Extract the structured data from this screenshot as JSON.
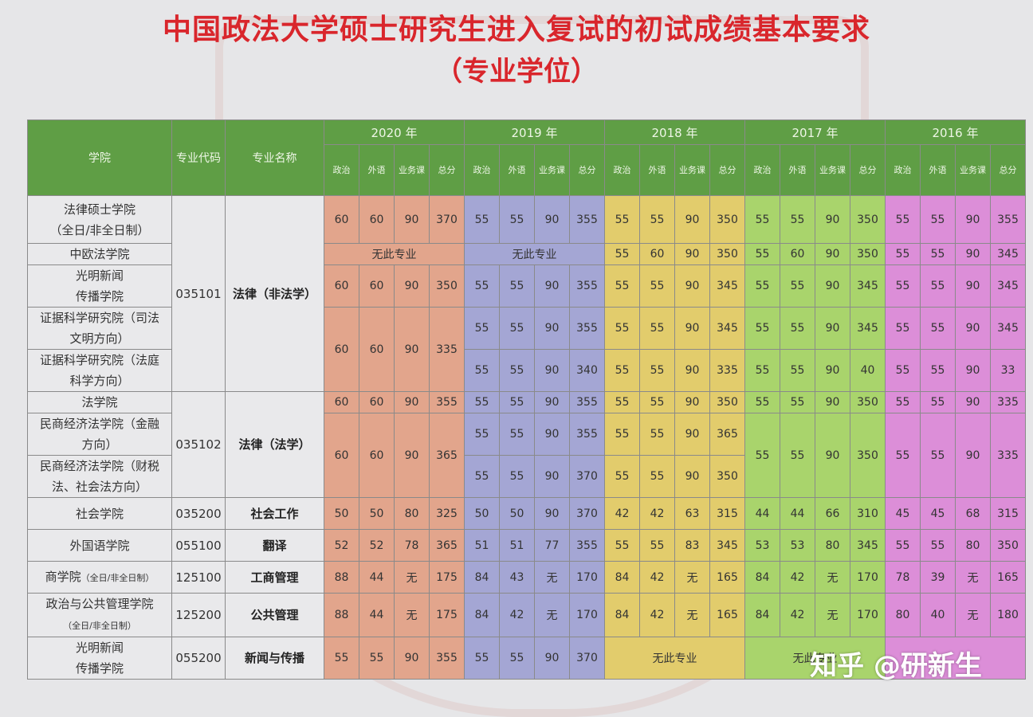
{
  "title": "中国政法大学硕士研究生进入复试的初试成绩基本要求",
  "subtitle": "（专业学位）",
  "header": {
    "college": "学院",
    "code": "专业代码",
    "major": "专业名称",
    "years": [
      "2020 年",
      "2019 年",
      "2018 年",
      "2017 年",
      "2016 年"
    ],
    "subjects": [
      "政治",
      "外语",
      "业务课",
      "总分"
    ]
  },
  "rows": {
    "r1": {
      "college_line1": "法律硕士学院",
      "college_line2": "（全日/非全日制）",
      "v2020": [
        "60",
        "60",
        "90",
        "370"
      ],
      "v2019": [
        "55",
        "55",
        "90",
        "355"
      ],
      "v2018": [
        "55",
        "55",
        "90",
        "350"
      ],
      "v2017": [
        "55",
        "55",
        "90",
        "350"
      ],
      "v2016": [
        "55",
        "55",
        "90",
        "355"
      ]
    },
    "r2": {
      "college": "中欧法学院",
      "na2020": "无此专业",
      "na2019": "无此专业",
      "v2018": [
        "55",
        "60",
        "90",
        "350"
      ],
      "v2017": [
        "55",
        "60",
        "90",
        "350"
      ],
      "v2016": [
        "55",
        "55",
        "90",
        "345"
      ]
    },
    "r3": {
      "college_line1": "光明新闻",
      "college_line2": "传播学院",
      "v2020": [
        "60",
        "60",
        "90",
        "350"
      ],
      "v2019": [
        "55",
        "55",
        "90",
        "355"
      ],
      "v2018": [
        "55",
        "55",
        "90",
        "345"
      ],
      "v2017": [
        "55",
        "55",
        "90",
        "345"
      ],
      "v2016": [
        "55",
        "55",
        "90",
        "345"
      ]
    },
    "r4": {
      "college_line1": "证据科学研究院（司法",
      "college_line2": "文明方向）",
      "v2020": [
        "60",
        "60",
        "90",
        "335"
      ],
      "v2019": [
        "55",
        "55",
        "90",
        "355"
      ],
      "v2018": [
        "55",
        "55",
        "90",
        "345"
      ],
      "v2017": [
        "55",
        "55",
        "90",
        "345"
      ],
      "v2016": [
        "55",
        "55",
        "90",
        "345"
      ]
    },
    "r5": {
      "college_line1": "证据科学研究院（法庭",
      "college_line2": "科学方向）",
      "v2019": [
        "55",
        "55",
        "90",
        "340"
      ],
      "v2018": [
        "55",
        "55",
        "90",
        "335"
      ],
      "v2017": [
        "55",
        "55",
        "90",
        "40"
      ],
      "v2016": [
        "55",
        "55",
        "90",
        "33"
      ]
    },
    "r6": {
      "college": "法学院",
      "v2020": [
        "60",
        "60",
        "90",
        "355"
      ],
      "v2019": [
        "55",
        "55",
        "90",
        "355"
      ],
      "v2018": [
        "55",
        "55",
        "90",
        "350"
      ],
      "v2017": [
        "55",
        "55",
        "90",
        "350"
      ],
      "v2016": [
        "55",
        "55",
        "90",
        "335"
      ]
    },
    "r7": {
      "college_line1": "民商经济法学院（金融",
      "college_line2": "方向）",
      "v2020": [
        "60",
        "60",
        "90",
        "365"
      ],
      "v2019": [
        "55",
        "55",
        "90",
        "355"
      ],
      "v2018": [
        "55",
        "55",
        "90",
        "365"
      ],
      "v2017": [
        "55",
        "55",
        "90",
        "350"
      ],
      "v2016": [
        "55",
        "55",
        "90",
        "335"
      ]
    },
    "r8": {
      "college_line1": "民商经济法学院（财税",
      "college_line2": "法、社会法方向）",
      "v2019": [
        "55",
        "55",
        "90",
        "370"
      ],
      "v2018": [
        "55",
        "55",
        "90",
        "350"
      ]
    },
    "r9": {
      "college": "社会学院",
      "code": "035200",
      "major": "社会工作",
      "v2020": [
        "50",
        "50",
        "80",
        "325"
      ],
      "v2019": [
        "50",
        "50",
        "90",
        "370"
      ],
      "v2018": [
        "42",
        "42",
        "63",
        "315"
      ],
      "v2017": [
        "44",
        "44",
        "66",
        "310"
      ],
      "v2016": [
        "45",
        "45",
        "68",
        "315"
      ]
    },
    "r10": {
      "college": "外国语学院",
      "code": "055100",
      "major": "翻译",
      "v2020": [
        "52",
        "52",
        "78",
        "365"
      ],
      "v2019": [
        "51",
        "51",
        "77",
        "355"
      ],
      "v2018": [
        "55",
        "55",
        "83",
        "345"
      ],
      "v2017": [
        "53",
        "53",
        "80",
        "345"
      ],
      "v2016": [
        "55",
        "55",
        "80",
        "350"
      ]
    },
    "r11": {
      "college": "商学院",
      "college_note": "（全日/非全日制）",
      "code": "125100",
      "major": "工商管理",
      "v2020": [
        "88",
        "44",
        "无",
        "175"
      ],
      "v2019": [
        "84",
        "43",
        "无",
        "170"
      ],
      "v2018": [
        "84",
        "42",
        "无",
        "165"
      ],
      "v2017": [
        "84",
        "42",
        "无",
        "170"
      ],
      "v2016": [
        "78",
        "39",
        "无",
        "165"
      ]
    },
    "r12": {
      "college_line1": "政治与公共管理学院",
      "college_line2": "（全日/非全日制）",
      "code": "125200",
      "major": "公共管理",
      "v2020": [
        "88",
        "44",
        "无",
        "175"
      ],
      "v2019": [
        "84",
        "42",
        "无",
        "170"
      ],
      "v2018": [
        "84",
        "42",
        "无",
        "165"
      ],
      "v2017": [
        "84",
        "42",
        "无",
        "170"
      ],
      "v2016": [
        "80",
        "40",
        "无",
        "180"
      ]
    },
    "r13": {
      "college_line1": "光明新闻",
      "college_line2": "传播学院",
      "code": "055200",
      "major": "新闻与传播",
      "v2020": [
        "55",
        "55",
        "90",
        "355"
      ],
      "v2019": [
        "55",
        "55",
        "90",
        "370"
      ],
      "na2018": "无此专业",
      "na2017": "无此专业"
    }
  },
  "group1": {
    "code": "035101",
    "major": "法律（非法学）"
  },
  "group2": {
    "code": "035102",
    "major": "法律（法学）"
  },
  "brand": "知乎 @研新生",
  "colors": {
    "title": "#d9262c",
    "header": "#5f9e45",
    "y2020": "#e2a58c",
    "y2019": "#a4a6d4",
    "y2018": "#e2cc6c",
    "y2017": "#a9d46c",
    "y2016": "#dc8ed8"
  }
}
